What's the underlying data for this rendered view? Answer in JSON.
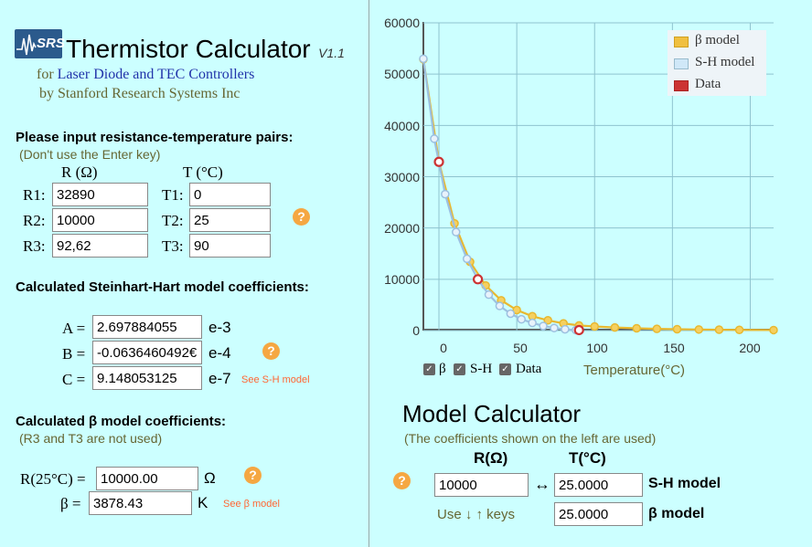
{
  "header": {
    "logo_text": "SRS",
    "title": "Thermistor Calculator",
    "version": "V1.1",
    "subtitle_prefix": "for",
    "subtitle_link": "Laser Diode and TEC Controllers",
    "byline": "by Stanford Research Systems Inc"
  },
  "inputs_section": {
    "title": "Please input resistance-temperature pairs:",
    "note": "(Don't use the Enter key)",
    "col_r": "R (Ω)",
    "col_t": "T (°C)",
    "rows": [
      {
        "r_label": "R1:",
        "r_value": "32890",
        "t_label": "T1:",
        "t_value": "0"
      },
      {
        "r_label": "R2:",
        "r_value": "10000",
        "t_label": "T2:",
        "t_value": "25"
      },
      {
        "r_label": "R3:",
        "r_value": "92,62",
        "t_label": "T3:",
        "t_value": "90"
      }
    ],
    "help": "?"
  },
  "sh_section": {
    "title": "Calculated Steinhart-Hart model coefficients:",
    "coeffs": [
      {
        "label": "A =",
        "value": "2.697884055",
        "exp": "e-3"
      },
      {
        "label": "B =",
        "value": "-0.0636460492€",
        "exp": "e-4"
      },
      {
        "label": "C =",
        "value": "9.148053125",
        "exp": "e-7"
      }
    ],
    "link": "See S-H model",
    "help": "?"
  },
  "beta_section": {
    "title": "Calculated β model coefficients:",
    "note": "(R3 and T3 are not used)",
    "r25_label": "R(25°C) =",
    "r25_value": "10000.00",
    "r25_unit": "Ω",
    "beta_label": "β =",
    "beta_value": "3878.43",
    "beta_unit": "K",
    "link": "See β model",
    "help": "?"
  },
  "chart_data": {
    "type": "line",
    "xlabel": "Temperature(°C)",
    "ylabel": "",
    "xlim": [
      -10,
      215
    ],
    "ylim": [
      0,
      60000
    ],
    "x_ticks": [
      "0",
      "50",
      "100",
      "150",
      "200"
    ],
    "y_ticks": [
      "0",
      "10000",
      "20000",
      "30000",
      "40000",
      "50000",
      "60000"
    ],
    "grid": true,
    "legend_position": "top-right",
    "series": [
      {
        "name": "β model",
        "color": "#f0c040",
        "x": [
          -10,
          0,
          10,
          20,
          30,
          40,
          50,
          60,
          70,
          80,
          90,
          100,
          113,
          127,
          140,
          153,
          167,
          180,
          193,
          215
        ],
        "y": [
          52900,
          32900,
          20900,
          13400,
          8800,
          5900,
          4000,
          2800,
          2000,
          1400,
          1000,
          800,
          600,
          450,
          340,
          270,
          210,
          170,
          140,
          100
        ]
      },
      {
        "name": "S-H model",
        "color": "#b8d8f0",
        "x": [
          -10,
          -3,
          4,
          11,
          18,
          25,
          32,
          39,
          46,
          53,
          60,
          67,
          74,
          81,
          88,
          90
        ],
        "y": [
          53000,
          37400,
          26600,
          19200,
          14000,
          10000,
          7000,
          4800,
          3300,
          2200,
          1500,
          900,
          500,
          250,
          100,
          93
        ]
      },
      {
        "name": "Data",
        "color": "#cc3333",
        "x": [
          0,
          25,
          90
        ],
        "y": [
          32890,
          10000,
          93
        ]
      }
    ]
  },
  "chart_controls": {
    "beta_label": "β",
    "sh_label": "S-H",
    "data_label": "Data"
  },
  "model_calc": {
    "title": "Model Calculator",
    "note": "(The coefficients shown on the left are used)",
    "col_r": "R(Ω)",
    "col_t": "T(°C)",
    "r_value": "10000",
    "arrow": "↔",
    "t_sh_value": "25.0000",
    "sh_label": "S-H model",
    "keys_hint": "Use ↓ ↑ keys",
    "t_beta_value": "25.0000",
    "beta_label": "β model",
    "help": "?"
  }
}
